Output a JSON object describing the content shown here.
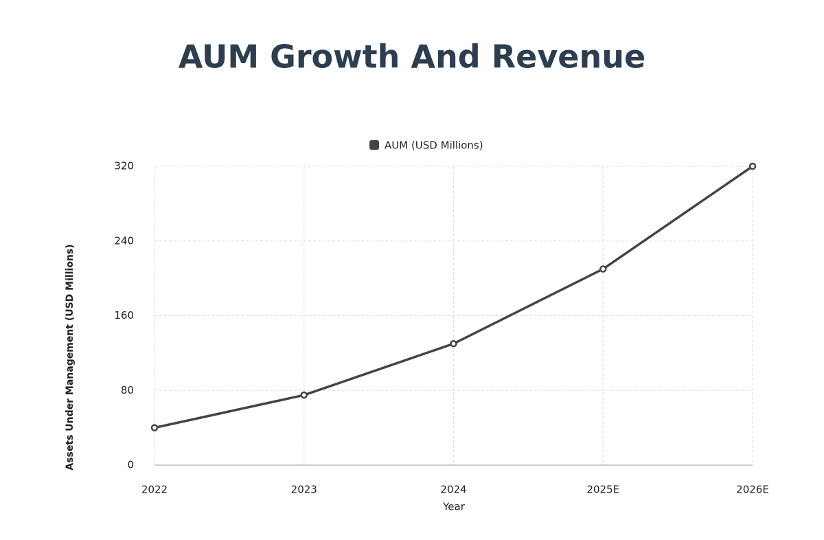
{
  "chart_data": {
    "type": "line",
    "title": "AUM Growth And Revenue",
    "x_label": "Year",
    "y_label": "Assets Under Management (USD Millions)",
    "categories": [
      "2022",
      "2023",
      "2024",
      "2025E",
      "2026E"
    ],
    "series": [
      {
        "name": "AUM (USD Millions)",
        "color": "#444444",
        "values": [
          40,
          75,
          130,
          210,
          320
        ]
      }
    ],
    "ylim": [
      0,
      320
    ],
    "yticks": [
      0,
      80,
      160,
      240,
      320
    ],
    "grid": true,
    "legend": "top"
  }
}
